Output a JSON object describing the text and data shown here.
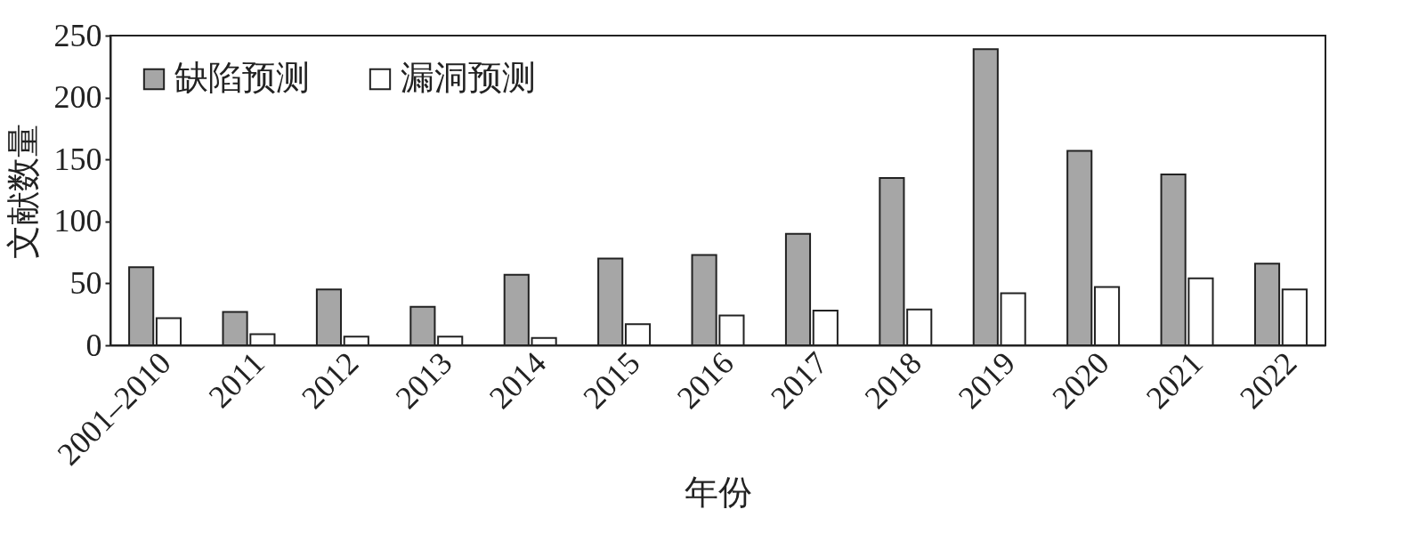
{
  "chart_data": {
    "type": "bar",
    "xlabel": "年份",
    "ylabel": "文献数量",
    "categories": [
      "2001–2010",
      "2011",
      "2012",
      "2013",
      "2014",
      "2015",
      "2016",
      "2017",
      "2018",
      "2019",
      "2020",
      "2021",
      "2022"
    ],
    "series": [
      {
        "name": "缺陷预测",
        "color": "#a6a6a6",
        "values": [
          63,
          27,
          45,
          31,
          57,
          70,
          73,
          90,
          135,
          239,
          157,
          138,
          66
        ]
      },
      {
        "name": "漏洞预测",
        "color": "#ffffff",
        "values": [
          22,
          9,
          7,
          7,
          6,
          17,
          24,
          28,
          29,
          42,
          47,
          54,
          45
        ]
      }
    ],
    "ylim": [
      0,
      250
    ],
    "yticks": [
      0,
      50,
      100,
      150,
      200,
      250
    ],
    "grid": false,
    "legend": "top left"
  }
}
